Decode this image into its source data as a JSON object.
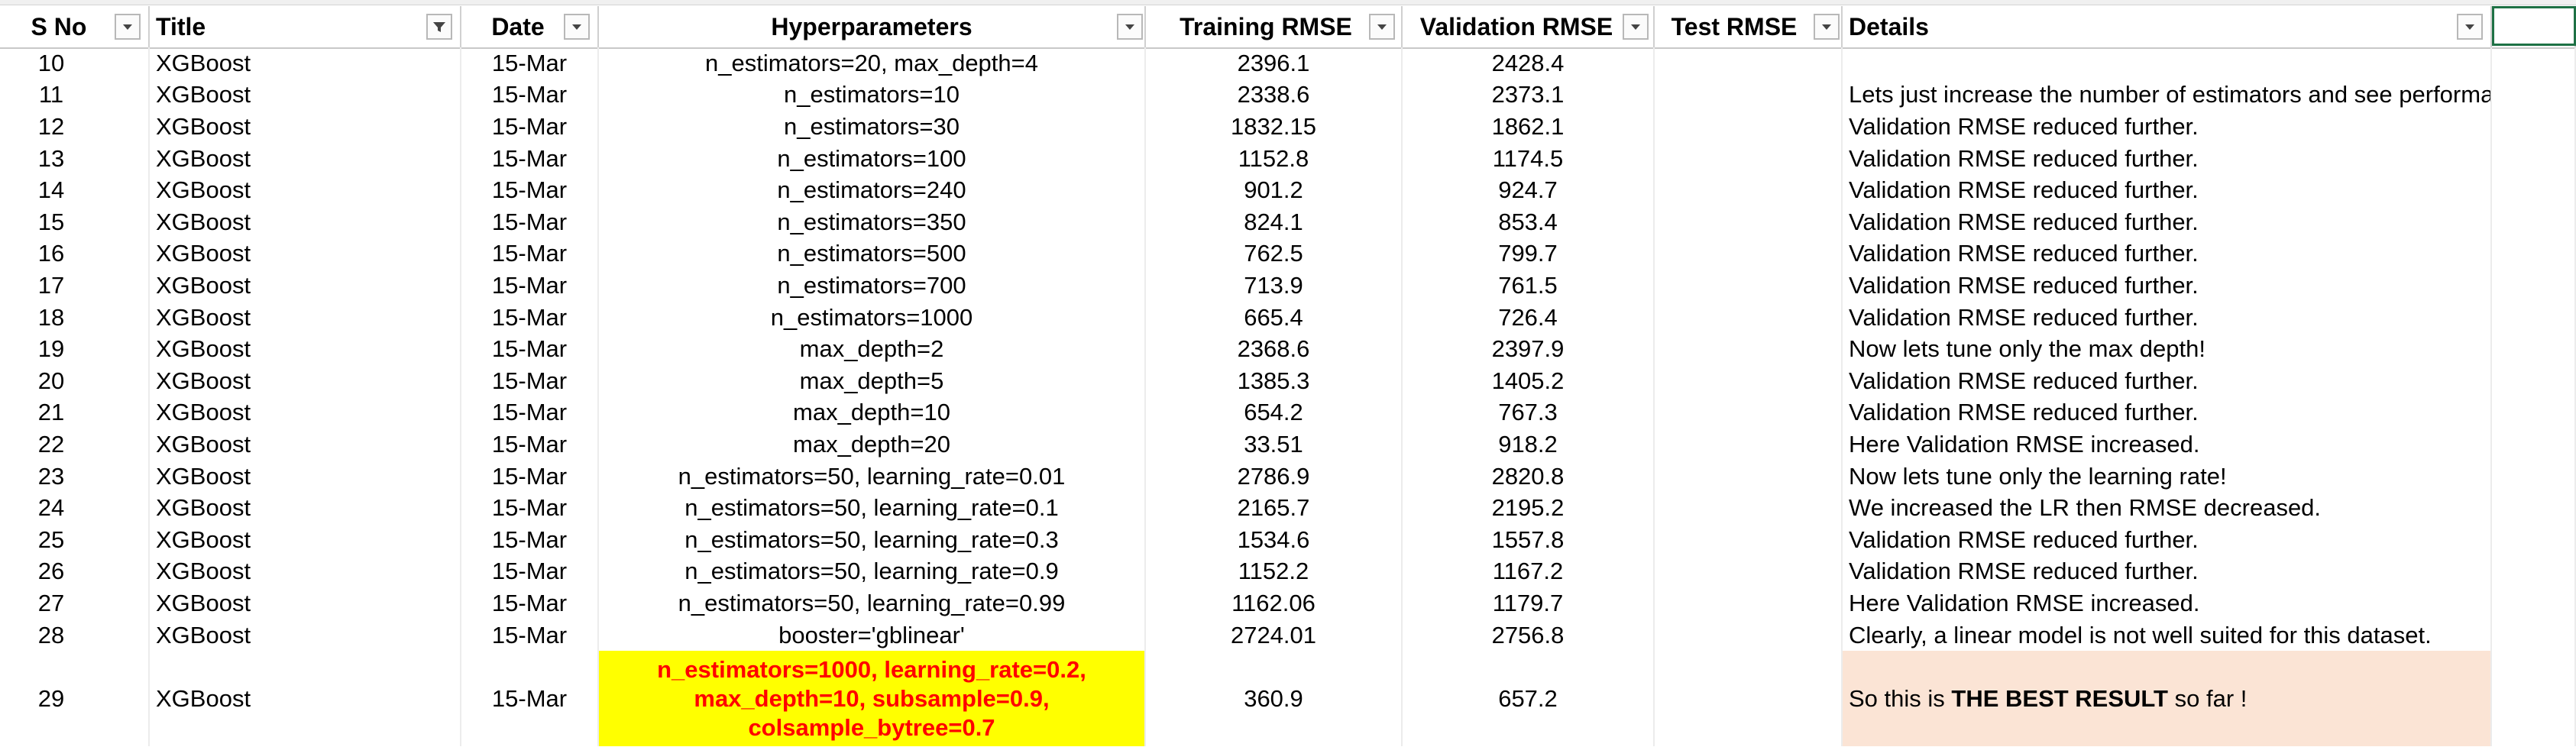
{
  "colors": {
    "highlight_yellow": "#ffff00",
    "highlight_text_red": "#ff0000",
    "details_peach": "#fbe4d5",
    "selection_green": "#1e7145"
  },
  "headers": [
    {
      "label": "S No",
      "icon": "dropdown-arrow-icon"
    },
    {
      "label": "Title",
      "icon": "filter-funnel-icon"
    },
    {
      "label": "Date",
      "icon": "dropdown-arrow-icon"
    },
    {
      "label": "Hyperparameters",
      "icon": "dropdown-arrow-icon"
    },
    {
      "label": "Training RMSE",
      "icon": "dropdown-arrow-icon"
    },
    {
      "label": "Validation RMSE",
      "icon": "dropdown-arrow-icon"
    },
    {
      "label": "Test RMSE",
      "icon": "dropdown-arrow-icon"
    },
    {
      "label": "Details",
      "icon": "dropdown-arrow-icon"
    }
  ],
  "rows": [
    {
      "sno": "10",
      "title": "XGBoost",
      "date": "15-Mar",
      "hyper": "n_estimators=20, max_depth=4",
      "train": "2396.1",
      "val": "2428.4",
      "test": "",
      "details": ""
    },
    {
      "sno": "11",
      "title": "XGBoost",
      "date": "15-Mar",
      "hyper": "n_estimators=10",
      "train": "2338.6",
      "val": "2373.1",
      "test": "",
      "details": "Lets just increase the number of estimators and see performance"
    },
    {
      "sno": "12",
      "title": "XGBoost",
      "date": "15-Mar",
      "hyper": "n_estimators=30",
      "train": "1832.15",
      "val": "1862.1",
      "test": "",
      "details": "Validation RMSE reduced further."
    },
    {
      "sno": "13",
      "title": "XGBoost",
      "date": "15-Mar",
      "hyper": "n_estimators=100",
      "train": "1152.8",
      "val": "1174.5",
      "test": "",
      "details": "Validation RMSE reduced further."
    },
    {
      "sno": "14",
      "title": "XGBoost",
      "date": "15-Mar",
      "hyper": "n_estimators=240",
      "train": "901.2",
      "val": "924.7",
      "test": "",
      "details": "Validation RMSE reduced further."
    },
    {
      "sno": "15",
      "title": "XGBoost",
      "date": "15-Mar",
      "hyper": "n_estimators=350",
      "train": "824.1",
      "val": "853.4",
      "test": "",
      "details": "Validation RMSE reduced further."
    },
    {
      "sno": "16",
      "title": "XGBoost",
      "date": "15-Mar",
      "hyper": "n_estimators=500",
      "train": "762.5",
      "val": "799.7",
      "test": "",
      "details": "Validation RMSE reduced further."
    },
    {
      "sno": "17",
      "title": "XGBoost",
      "date": "15-Mar",
      "hyper": "n_estimators=700",
      "train": "713.9",
      "val": "761.5",
      "test": "",
      "details": "Validation RMSE reduced further."
    },
    {
      "sno": "18",
      "title": "XGBoost",
      "date": "15-Mar",
      "hyper": "n_estimators=1000",
      "train": "665.4",
      "val": "726.4",
      "test": "",
      "details": "Validation RMSE reduced further."
    },
    {
      "sno": "19",
      "title": "XGBoost",
      "date": "15-Mar",
      "hyper": "max_depth=2",
      "train": "2368.6",
      "val": "2397.9",
      "test": "",
      "details": "Now lets tune only the max depth!"
    },
    {
      "sno": "20",
      "title": "XGBoost",
      "date": "15-Mar",
      "hyper": "max_depth=5",
      "train": "1385.3",
      "val": "1405.2",
      "test": "",
      "details": "Validation RMSE reduced further."
    },
    {
      "sno": "21",
      "title": "XGBoost",
      "date": "15-Mar",
      "hyper": "max_depth=10",
      "train": "654.2",
      "val": "767.3",
      "test": "",
      "details": "Validation RMSE reduced further."
    },
    {
      "sno": "22",
      "title": "XGBoost",
      "date": "15-Mar",
      "hyper": "max_depth=20",
      "train": "33.51",
      "val": "918.2",
      "test": "",
      "details": "Here Validation RMSE increased."
    },
    {
      "sno": "23",
      "title": "XGBoost",
      "date": "15-Mar",
      "hyper": "n_estimators=50, learning_rate=0.01",
      "train": "2786.9",
      "val": "2820.8",
      "test": "",
      "details": "Now lets tune only the learning rate!"
    },
    {
      "sno": "24",
      "title": "XGBoost",
      "date": "15-Mar",
      "hyper": "n_estimators=50, learning_rate=0.1",
      "train": "2165.7",
      "val": "2195.2",
      "test": "",
      "details": "We increased the LR then RMSE decreased."
    },
    {
      "sno": "25",
      "title": "XGBoost",
      "date": "15-Mar",
      "hyper": "n_estimators=50, learning_rate=0.3",
      "train": "1534.6",
      "val": "1557.8",
      "test": "",
      "details": "Validation RMSE reduced further."
    },
    {
      "sno": "26",
      "title": "XGBoost",
      "date": "15-Mar",
      "hyper": "n_estimators=50, learning_rate=0.9",
      "train": "1152.2",
      "val": "1167.2",
      "test": "",
      "details": "Validation RMSE reduced further."
    },
    {
      "sno": "27",
      "title": "XGBoost",
      "date": "15-Mar",
      "hyper": "n_estimators=50, learning_rate=0.99",
      "train": "1162.06",
      "val": "1179.7",
      "test": "",
      "details": "Here Validation RMSE increased."
    },
    {
      "sno": "28",
      "title": "XGBoost",
      "date": "15-Mar",
      "hyper": "booster='gblinear'",
      "train": "2724.01",
      "val": "2756.8",
      "test": "",
      "details": "Clearly, a linear model is not well suited for this dataset."
    }
  ],
  "best_row": {
    "sno": "29",
    "title": "XGBoost",
    "date": "15-Mar",
    "hyper_lines": [
      "n_estimators=1000,  learning_rate=0.2,",
      "max_depth=10, subsample=0.9,",
      "colsample_bytree=0.7"
    ],
    "train": "360.9",
    "val": "657.2",
    "test": "",
    "details_pre": "So this is ",
    "details_bold": "THE BEST RESULT",
    "details_post": " so far !"
  }
}
